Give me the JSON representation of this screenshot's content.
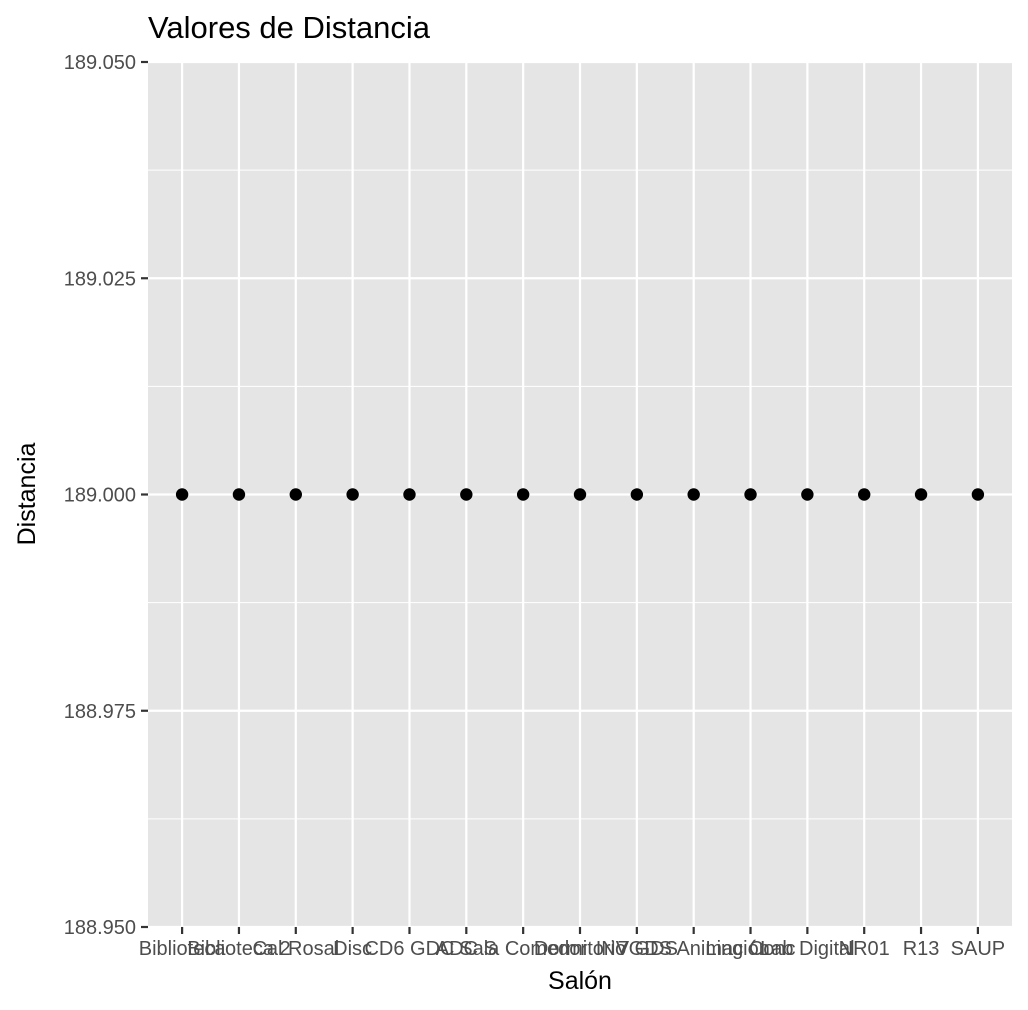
{
  "chart_data": {
    "type": "scatter",
    "title": "Valores de Distancia",
    "xlabel": "Salón",
    "ylabel": "Distancia",
    "categories": [
      "Biblioteca",
      "Biblioteca 2",
      "Cal Rosal",
      "Disc",
      "CD6 GDC",
      "ADC S",
      "Sala Comedor",
      "Dormitorio",
      "INV GDS",
      "7GDS Animación",
      "Ling Conc",
      "Lab Digital",
      "NR01",
      "R13",
      "SAUP"
    ],
    "values": [
      189,
      189,
      189,
      189,
      189,
      189,
      189,
      189,
      189,
      189,
      189,
      189,
      189,
      189,
      189
    ],
    "ylim": [
      188.95,
      189.05
    ],
    "yticks": [
      "188.950",
      "188.975",
      "189.000",
      "189.025",
      "189.050"
    ],
    "ytick_values": [
      188.95,
      188.975,
      189.0,
      189.025,
      189.05
    ],
    "grid": true,
    "legend": "none",
    "colors": {
      "panel_background": "#e5e5e5",
      "grid": "#ffffff",
      "point": "#000000",
      "tick_text": "#4d4d4d",
      "tick_mark": "#333333"
    }
  }
}
